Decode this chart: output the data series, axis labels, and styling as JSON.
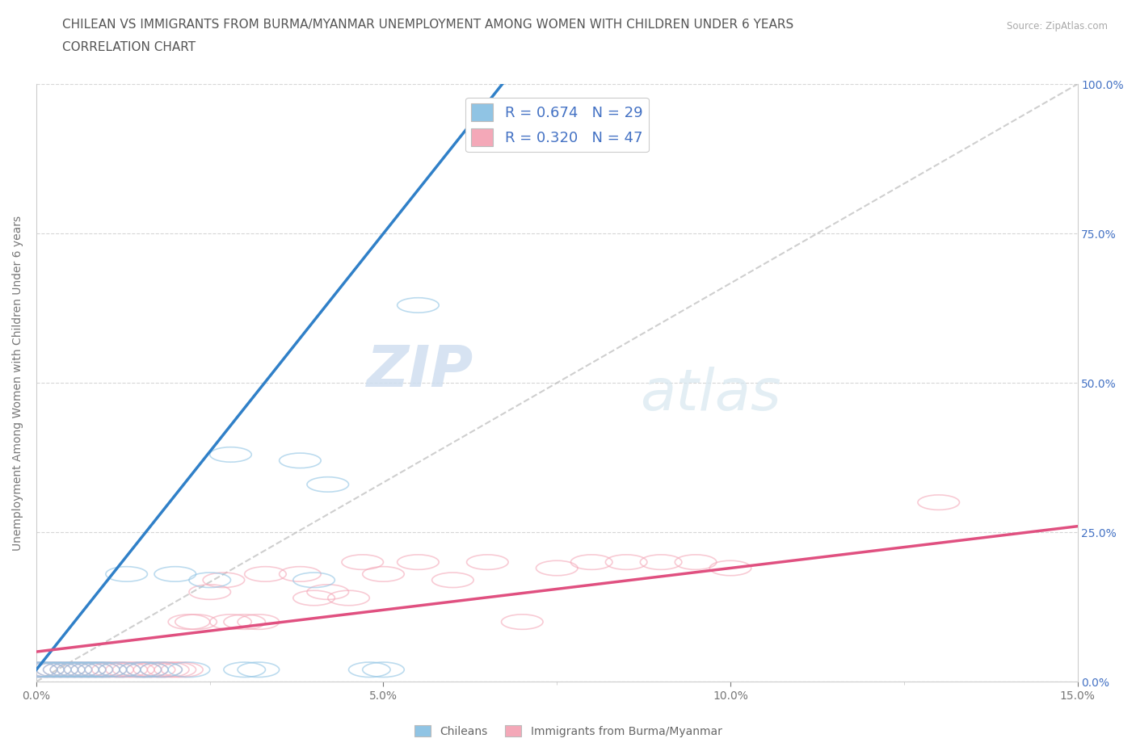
{
  "title_line1": "CHILEAN VS IMMIGRANTS FROM BURMA/MYANMAR UNEMPLOYMENT AMONG WOMEN WITH CHILDREN UNDER 6 YEARS",
  "title_line2": "CORRELATION CHART",
  "source": "Source: ZipAtlas.com",
  "ylabel": "Unemployment Among Women with Children Under 6 years",
  "xlim": [
    0.0,
    0.15
  ],
  "ylim": [
    0.0,
    1.0
  ],
  "xticks": [
    0.0,
    0.05,
    0.1,
    0.15
  ],
  "xtick_labels": [
    "0.0%",
    "5.0%",
    "10.0%",
    "15.0%"
  ],
  "yticks": [
    0.0,
    0.25,
    0.5,
    0.75,
    1.0
  ],
  "ytick_labels": [
    "0.0%",
    "25.0%",
    "50.0%",
    "75.0%",
    "100.0%"
  ],
  "chilean_color": "#90c4e4",
  "myanmar_color": "#f4a8b8",
  "chilean_line_color": "#3080c8",
  "myanmar_line_color": "#e05080",
  "chilean_R": 0.674,
  "chilean_N": 29,
  "myanmar_R": 0.32,
  "myanmar_N": 47,
  "background_color": "#ffffff",
  "grid_color": "#cccccc",
  "right_tick_color": "#4472c4",
  "legend_text_color": "#4472c4",
  "title_fontsize": 11,
  "axis_label_fontsize": 10,
  "tick_fontsize": 10,
  "chilean_scatter_x": [
    0.0,
    0.001,
    0.002,
    0.003,
    0.004,
    0.005,
    0.006,
    0.007,
    0.008,
    0.009,
    0.01,
    0.012,
    0.013,
    0.015,
    0.016,
    0.018,
    0.02,
    0.022,
    0.025,
    0.028,
    0.03,
    0.032,
    0.038,
    0.04,
    0.042,
    0.048,
    0.05,
    0.055,
    0.065
  ],
  "chilean_scatter_y": [
    0.02,
    0.02,
    0.02,
    0.02,
    0.02,
    0.02,
    0.02,
    0.02,
    0.02,
    0.02,
    0.02,
    0.02,
    0.18,
    0.02,
    0.02,
    0.02,
    0.18,
    0.02,
    0.17,
    0.38,
    0.02,
    0.02,
    0.37,
    0.17,
    0.33,
    0.02,
    0.02,
    0.63,
    0.96
  ],
  "myanmar_scatter_x": [
    0.0,
    0.001,
    0.002,
    0.003,
    0.004,
    0.005,
    0.006,
    0.007,
    0.008,
    0.009,
    0.01,
    0.011,
    0.012,
    0.013,
    0.014,
    0.015,
    0.016,
    0.017,
    0.018,
    0.019,
    0.02,
    0.021,
    0.022,
    0.023,
    0.025,
    0.027,
    0.028,
    0.03,
    0.032,
    0.033,
    0.038,
    0.04,
    0.042,
    0.045,
    0.047,
    0.05,
    0.055,
    0.06,
    0.065,
    0.07,
    0.075,
    0.08,
    0.085,
    0.09,
    0.095,
    0.1,
    0.13
  ],
  "myanmar_scatter_y": [
    0.02,
    0.02,
    0.02,
    0.02,
    0.02,
    0.02,
    0.02,
    0.02,
    0.02,
    0.02,
    0.02,
    0.02,
    0.02,
    0.02,
    0.02,
    0.02,
    0.02,
    0.02,
    0.02,
    0.02,
    0.02,
    0.02,
    0.1,
    0.1,
    0.15,
    0.17,
    0.1,
    0.1,
    0.1,
    0.18,
    0.18,
    0.14,
    0.15,
    0.14,
    0.2,
    0.18,
    0.2,
    0.17,
    0.2,
    0.1,
    0.19,
    0.2,
    0.2,
    0.2,
    0.2,
    0.19,
    0.3
  ],
  "diag_color": "#bbbbbb",
  "watermark_color": "#d0dff0"
}
